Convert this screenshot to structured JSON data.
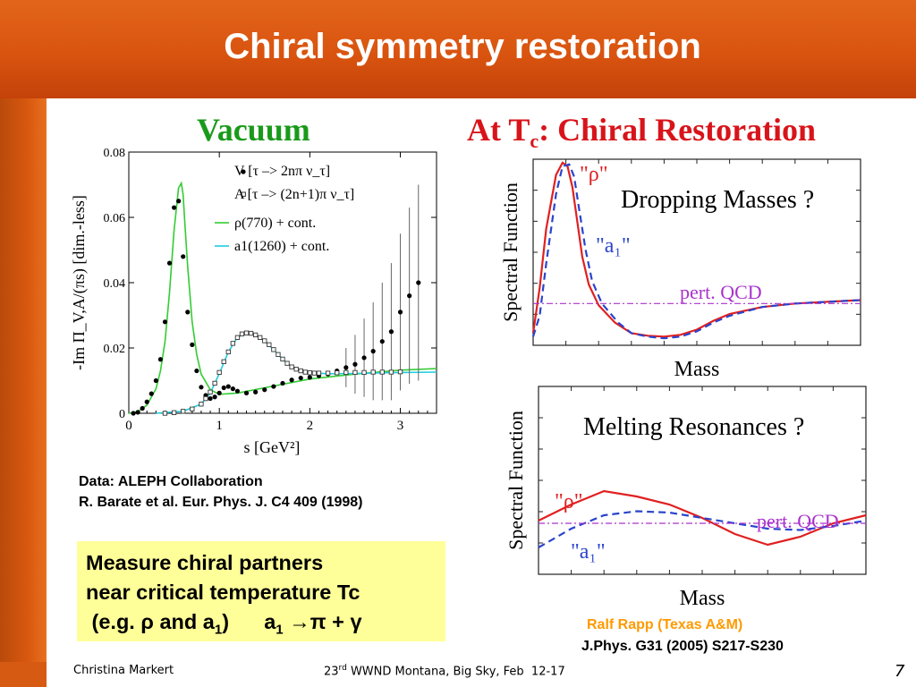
{
  "slide": {
    "title": "Chiral symmetry restoration",
    "page_number": "7",
    "author": "Christina Markert",
    "conference_prefix": "23",
    "conference_sup": "rd",
    "conference_rest": " WWND Montana, Big Sky, Feb  12-17",
    "colors": {
      "header_orange": "#d9540f",
      "vacuum_green": "#1a9a1a",
      "restoration_red": "#d8141a",
      "highlight_yellow": "#ffff99",
      "rapp_orange": "#ff9a00"
    }
  },
  "left": {
    "heading": "Vacuum",
    "data_source": "Data: ALEPH Collaboration",
    "reference": "R. Barate et al. Eur. Phys. J. C4 409 (1998)"
  },
  "right": {
    "heading_main": "At T",
    "heading_sub": "c",
    "heading_rest": ": Chiral Restoration",
    "author": "Ralf Rapp (Texas A&M)",
    "reference": "J.Phys. G31 (2005) S217-S230"
  },
  "highlight": {
    "line1": "Measure chiral partners",
    "line2": "near critical temperature Tc",
    "line3a": " (e.g. ",
    "rho": "ρ",
    "line3b": " and a",
    "sub1": "1",
    "line3c": ")      a",
    "sub2": "1",
    "arrow": " →π ",
    "plus": "+ ",
    "gamma": "γ"
  },
  "chart_data": [
    {
      "type": "scatter",
      "title": "",
      "xlabel": "s [GeV²]",
      "ylabel": "-Im Π_V,A/(πs) [dim.-less]",
      "xlim": [
        0,
        3.4
      ],
      "ylim": [
        0,
        0.08
      ],
      "x_ticks": [
        "0",
        "1",
        "2",
        "3"
      ],
      "y_ticks": [
        "0",
        "0.02",
        "0.04",
        "0.06",
        "0.08"
      ],
      "legend_position": "top-right",
      "series": [
        {
          "name": "V [τ –> 2nπ ν_τ]",
          "marker": "filled-circle",
          "x": [
            0.05,
            0.1,
            0.15,
            0.2,
            0.25,
            0.3,
            0.35,
            0.4,
            0.45,
            0.5,
            0.55,
            0.6,
            0.65,
            0.7,
            0.75,
            0.8,
            0.85,
            0.9,
            0.95,
            1.0,
            1.05,
            1.1,
            1.15,
            1.2,
            1.3,
            1.4,
            1.5,
            1.6,
            1.7,
            1.8,
            1.9,
            2.0,
            2.1,
            2.2,
            2.3,
            2.4,
            2.5,
            2.6,
            2.7,
            2.8,
            2.9,
            3.0,
            3.1,
            3.2
          ],
          "y": [
            0.0,
            0.0003,
            0.0015,
            0.0035,
            0.006,
            0.01,
            0.0165,
            0.028,
            0.046,
            0.063,
            0.065,
            0.048,
            0.031,
            0.021,
            0.013,
            0.008,
            0.0055,
            0.0045,
            0.005,
            0.0062,
            0.0078,
            0.0082,
            0.0075,
            0.0068,
            0.0062,
            0.0065,
            0.0072,
            0.0082,
            0.0092,
            0.0102,
            0.0108,
            0.011,
            0.0115,
            0.012,
            0.013,
            0.014,
            0.015,
            0.017,
            0.019,
            0.022,
            0.025,
            0.031,
            0.036,
            0.04
          ]
        },
        {
          "name": "A [τ –> (2n+1)π ν_τ]",
          "marker": "open-square",
          "x": [
            0.4,
            0.5,
            0.6,
            0.7,
            0.8,
            0.85,
            0.9,
            0.95,
            1.0,
            1.05,
            1.1,
            1.15,
            1.2,
            1.25,
            1.3,
            1.35,
            1.4,
            1.45,
            1.5,
            1.55,
            1.6,
            1.65,
            1.7,
            1.75,
            1.8,
            1.85,
            1.9,
            1.95,
            2.0,
            2.05,
            2.1,
            2.2,
            2.3,
            2.4,
            2.5,
            2.6,
            2.7,
            2.8,
            2.9,
            3.0
          ],
          "y": [
            0.0,
            0.0002,
            0.0006,
            0.0013,
            0.0028,
            0.0045,
            0.0065,
            0.0092,
            0.0125,
            0.0158,
            0.0188,
            0.0214,
            0.0232,
            0.0243,
            0.0246,
            0.0245,
            0.024,
            0.0232,
            0.0222,
            0.021,
            0.0195,
            0.018,
            0.0166,
            0.0153,
            0.0142,
            0.0135,
            0.013,
            0.0126,
            0.0124,
            0.0123,
            0.0123,
            0.0123,
            0.0124,
            0.0125,
            0.0125,
            0.0125,
            0.0126,
            0.0126,
            0.0126,
            0.0127
          ]
        },
        {
          "name": "ρ(770)  + cont.",
          "type": "line",
          "color": "#33cc33",
          "x": [
            0,
            0.1,
            0.2,
            0.3,
            0.35,
            0.4,
            0.45,
            0.5,
            0.55,
            0.58,
            0.6,
            0.62,
            0.65,
            0.7,
            0.75,
            0.8,
            0.9,
            1.0,
            1.2,
            1.5,
            2.0,
            2.5,
            3.0,
            3.4
          ],
          "y": [
            0,
            0.0005,
            0.0025,
            0.0075,
            0.013,
            0.022,
            0.037,
            0.056,
            0.069,
            0.0705,
            0.067,
            0.058,
            0.045,
            0.028,
            0.018,
            0.012,
            0.0072,
            0.0058,
            0.0062,
            0.0078,
            0.0105,
            0.012,
            0.0132,
            0.0137
          ]
        },
        {
          "name": "a1(1260) + cont.",
          "type": "line",
          "color": "#22ccdd",
          "x": [
            0.3,
            0.6,
            0.8,
            0.9,
            1.0,
            1.1,
            1.2,
            1.3,
            1.4,
            1.5,
            1.6,
            1.7,
            1.8,
            1.9,
            2.0,
            2.2,
            2.5,
            3.0,
            3.4
          ],
          "y": [
            0,
            0.0006,
            0.0028,
            0.0062,
            0.0122,
            0.0188,
            0.0232,
            0.0247,
            0.024,
            0.0221,
            0.0195,
            0.0165,
            0.0143,
            0.013,
            0.0124,
            0.0121,
            0.0122,
            0.0125,
            0.0126
          ]
        }
      ]
    },
    {
      "type": "line",
      "title": "Dropping Masses ?",
      "xlabel": "Mass",
      "ylabel": "Spectral  Function",
      "annotations": [
        "\"ρ\"",
        "\"a₁\"",
        "pert. QCD"
      ],
      "series": [
        {
          "name": "\"ρ\"",
          "style": "solid",
          "color": "#e02020",
          "x": [
            0.0,
            0.02,
            0.04,
            0.07,
            0.09,
            0.105,
            0.12,
            0.135,
            0.15,
            0.17,
            0.2,
            0.25,
            0.3,
            0.35,
            0.4,
            0.45,
            0.5,
            0.55,
            0.6,
            0.7,
            0.8,
            0.9,
            1.0
          ],
          "y": [
            0.02,
            0.28,
            0.62,
            0.93,
            1.0,
            0.98,
            0.86,
            0.66,
            0.46,
            0.3,
            0.18,
            0.08,
            0.02,
            0.005,
            0.0,
            0.01,
            0.04,
            0.09,
            0.13,
            0.17,
            0.19,
            0.2,
            0.21
          ]
        },
        {
          "name": "\"a₁\"",
          "style": "dashed",
          "color": "#2a44cc",
          "x": [
            0.0,
            0.02,
            0.04,
            0.07,
            0.09,
            0.11,
            0.125,
            0.14,
            0.16,
            0.18,
            0.21,
            0.26,
            0.3,
            0.35,
            0.4,
            0.45,
            0.5,
            0.55,
            0.6,
            0.7,
            0.8,
            0.9,
            1.0
          ],
          "y": [
            0.0,
            0.12,
            0.42,
            0.82,
            0.98,
            0.99,
            0.92,
            0.74,
            0.5,
            0.32,
            0.19,
            0.08,
            0.02,
            0.0,
            -0.01,
            0.0,
            0.03,
            0.08,
            0.12,
            0.17,
            0.19,
            0.2,
            0.21
          ]
        },
        {
          "name": "pert. QCD",
          "style": "dash-dot",
          "color": "#aa33cc",
          "x": [
            0,
            1
          ],
          "y": [
            0.19,
            0.19
          ]
        }
      ]
    },
    {
      "type": "line",
      "title": "Melting Resonances ?",
      "xlabel": "Mass",
      "ylabel": "Spectral  Function",
      "annotations": [
        "\"ρ\"",
        "\"a₁\"",
        "pert. QCD"
      ],
      "series": [
        {
          "name": "\"ρ\"",
          "style": "solid",
          "color": "#e02020",
          "x": [
            0,
            0.1,
            0.2,
            0.3,
            0.4,
            0.5,
            0.6,
            0.7,
            0.8,
            0.9,
            1.0
          ],
          "y": [
            0.4,
            0.52,
            0.62,
            0.58,
            0.52,
            0.42,
            0.3,
            0.22,
            0.28,
            0.38,
            0.44
          ]
        },
        {
          "name": "\"a₁\"",
          "style": "dashed",
          "color": "#2a44cc",
          "x": [
            0,
            0.1,
            0.2,
            0.3,
            0.4,
            0.5,
            0.6,
            0.7,
            0.8,
            0.9,
            1.0
          ],
          "y": [
            0.2,
            0.34,
            0.44,
            0.47,
            0.46,
            0.42,
            0.38,
            0.34,
            0.33,
            0.36,
            0.4
          ]
        },
        {
          "name": "pert. QCD",
          "style": "dash-dot",
          "color": "#aa33cc",
          "x": [
            0,
            1
          ],
          "y": [
            0.38,
            0.38
          ]
        }
      ]
    }
  ]
}
